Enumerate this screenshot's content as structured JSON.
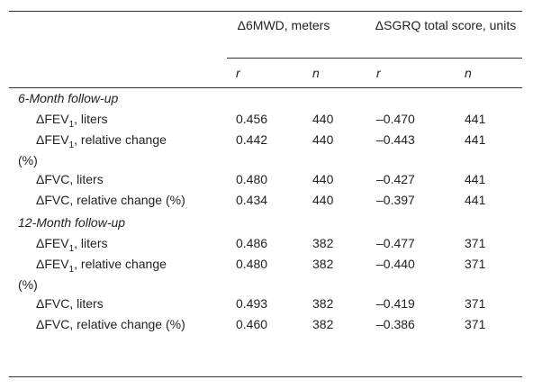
{
  "table": {
    "groups": [
      "Δ6MWD, meters",
      "ΔSGRQ total score, units"
    ],
    "subheaders": [
      "r",
      "n",
      "r",
      "n"
    ],
    "sections": [
      {
        "title": "6-Month follow-up",
        "rows": [
          {
            "label": [
              "ΔFEV",
              "1",
              ", liters"
            ],
            "cells": [
              "0.456",
              "440",
              "–0.470",
              "441"
            ]
          },
          {
            "label": [
              "ΔFEV",
              "1",
              ", relative change (%)"
            ],
            "cells": [
              "0.442",
              "440",
              "–0.443",
              "441"
            ]
          },
          {
            "label": [
              "ΔFVC, liters"
            ],
            "cells": [
              "0.480",
              "440",
              "–0.427",
              "441"
            ]
          },
          {
            "label": [
              "ΔFVC, relative change (%)"
            ],
            "cells": [
              "0.434",
              "440",
              "–0.397",
              "441"
            ]
          }
        ]
      },
      {
        "title": "12-Month follow-up",
        "rows": [
          {
            "label": [
              "ΔFEV",
              "1",
              ", liters"
            ],
            "cells": [
              "0.486",
              "382",
              "–0.477",
              "371"
            ]
          },
          {
            "label": [
              "ΔFEV",
              "1",
              ", relative change (%)"
            ],
            "cells": [
              "0.480",
              "382",
              "–0.440",
              "371"
            ]
          },
          {
            "label": [
              "ΔFVC, liters"
            ],
            "cells": [
              "0.493",
              "382",
              "–0.419",
              "371"
            ]
          },
          {
            "label": [
              "ΔFVC, relative change (%)"
            ],
            "cells": [
              "0.460",
              "382",
              "–0.386",
              "371"
            ]
          }
        ]
      }
    ]
  }
}
